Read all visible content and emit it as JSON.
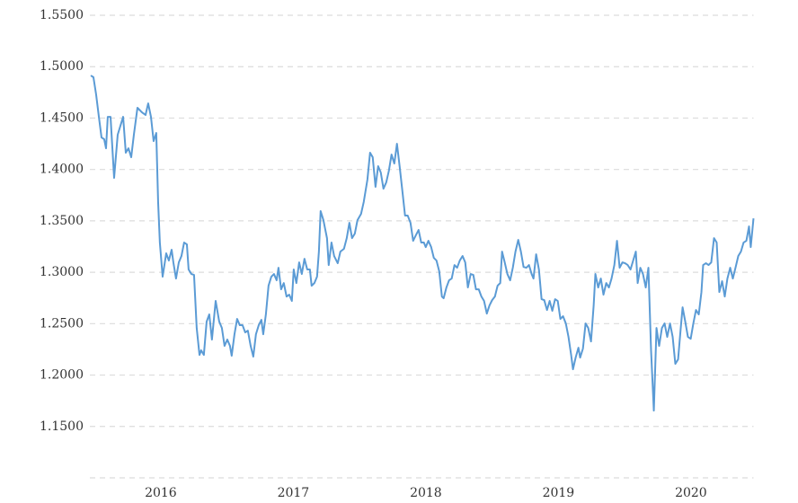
{
  "chart_data": {
    "type": "line",
    "color": "#5b9bd5",
    "grid": true,
    "xlim": [
      2015.465,
      2020.472
    ],
    "xticks": [
      2016,
      2017,
      2018,
      2019,
      2020
    ],
    "ylim": [
      1.1,
      1.55
    ],
    "yticks": [
      {
        "value": 1.15,
        "label": "1.1500"
      },
      {
        "value": 1.2,
        "label": "1.2000"
      },
      {
        "value": 1.25,
        "label": "1.2500"
      },
      {
        "value": 1.3,
        "label": "1.3000"
      },
      {
        "value": 1.35,
        "label": "1.3500"
      },
      {
        "value": 1.4,
        "label": "1.4000"
      },
      {
        "value": 1.45,
        "label": "1.4500"
      },
      {
        "value": 1.5,
        "label": "1.5000"
      },
      {
        "value": 1.55,
        "label": "1.5500"
      }
    ],
    "x": [
      2015.472,
      2015.492,
      2015.512,
      2015.533,
      2015.553,
      2015.573,
      2015.587,
      2015.6,
      2015.621,
      2015.648,
      2015.675,
      2015.716,
      2015.736,
      2015.756,
      2015.777,
      2015.797,
      2015.824,
      2015.858,
      2015.885,
      2015.905,
      2015.926,
      2015.946,
      2015.966,
      2015.98,
      2015.993,
      2016.014,
      2016.041,
      2016.061,
      2016.082,
      2016.095,
      2016.115,
      2016.136,
      2016.156,
      2016.176,
      2016.197,
      2016.21,
      2016.231,
      2016.251,
      2016.271,
      2016.292,
      2016.305,
      2016.325,
      2016.346,
      2016.366,
      2016.386,
      2016.414,
      2016.441,
      2016.461,
      2016.481,
      2016.502,
      2016.522,
      2016.535,
      2016.556,
      2016.576,
      2016.596,
      2016.617,
      2016.637,
      2016.657,
      2016.678,
      2016.698,
      2016.718,
      2016.739,
      2016.759,
      2016.773,
      2016.793,
      2016.813,
      2016.834,
      2016.854,
      2016.874,
      2016.888,
      2016.908,
      2016.928,
      2016.949,
      2016.969,
      2016.989,
      2017.003,
      2017.023,
      2017.044,
      2017.064,
      2017.084,
      2017.105,
      2017.125,
      2017.138,
      2017.159,
      2017.179,
      2017.193,
      2017.206,
      2017.227,
      2017.254,
      2017.267,
      2017.288,
      2017.308,
      2017.335,
      2017.355,
      2017.382,
      2017.403,
      2017.423,
      2017.443,
      2017.464,
      2017.484,
      2017.511,
      2017.531,
      2017.559,
      2017.579,
      2017.599,
      2017.62,
      2017.64,
      2017.66,
      2017.68,
      2017.701,
      2017.721,
      2017.741,
      2017.762,
      2017.782,
      2017.802,
      2017.823,
      2017.843,
      2017.863,
      2017.884,
      2017.904,
      2017.924,
      2017.945,
      2017.965,
      2017.985,
      2017.999,
      2018.019,
      2018.04,
      2018.06,
      2018.08,
      2018.101,
      2018.121,
      2018.134,
      2018.155,
      2018.175,
      2018.195,
      2018.216,
      2018.236,
      2018.256,
      2018.277,
      2018.297,
      2018.317,
      2018.338,
      2018.358,
      2018.378,
      2018.399,
      2018.419,
      2018.439,
      2018.46,
      2018.48,
      2018.5,
      2018.521,
      2018.541,
      2018.561,
      2018.575,
      2018.595,
      2018.615,
      2018.636,
      2018.656,
      2018.676,
      2018.697,
      2018.717,
      2018.737,
      2018.758,
      2018.778,
      2018.798,
      2018.812,
      2018.832,
      2018.853,
      2018.873,
      2018.893,
      2018.914,
      2018.934,
      2018.954,
      2018.975,
      2018.995,
      2019.015,
      2019.035,
      2019.056,
      2019.076,
      2019.096,
      2019.11,
      2019.13,
      2019.151,
      2019.164,
      2019.185,
      2019.205,
      2019.225,
      2019.246,
      2019.266,
      2019.279,
      2019.3,
      2019.32,
      2019.34,
      2019.361,
      2019.381,
      2019.401,
      2019.422,
      2019.442,
      2019.462,
      2019.483,
      2019.503,
      2019.523,
      2019.544,
      2019.564,
      2019.584,
      2019.598,
      2019.618,
      2019.638,
      2019.659,
      2019.679,
      2019.699,
      2019.72,
      2019.74,
      2019.76,
      2019.781,
      2019.801,
      2019.821,
      2019.842,
      2019.862,
      2019.882,
      2019.903,
      2019.923,
      2019.937,
      2019.957,
      2019.977,
      2019.998,
      2020.018,
      2020.038,
      2020.059,
      2020.079,
      2020.092,
      2020.113,
      2020.133,
      2020.153,
      2020.174,
      2020.194,
      2020.214,
      2020.235,
      2020.255,
      2020.275,
      2020.296,
      2020.316,
      2020.336,
      2020.357,
      2020.377,
      2020.397,
      2020.418,
      2020.438,
      2020.451,
      2020.472
    ],
    "values": [
      1.4914,
      1.4897,
      1.4731,
      1.4512,
      1.4311,
      1.4294,
      1.4206,
      1.4512,
      1.4512,
      1.3918,
      1.4338,
      1.4512,
      1.4163,
      1.4206,
      1.4119,
      1.4338,
      1.46,
      1.4556,
      1.453,
      1.4643,
      1.4512,
      1.4276,
      1.4355,
      1.3682,
      1.3289,
      1.2957,
      1.3184,
      1.3114,
      1.3219,
      1.3096,
      1.2939,
      1.3096,
      1.3158,
      1.3289,
      1.3271,
      1.3027,
      1.2983,
      1.2974,
      1.2458,
      1.2196,
      1.224,
      1.2196,
      1.252,
      1.259,
      1.2345,
      1.2721,
      1.252,
      1.2458,
      1.2284,
      1.2345,
      1.2284,
      1.2188,
      1.2397,
      1.2546,
      1.2485,
      1.2485,
      1.2415,
      1.2432,
      1.2284,
      1.2179,
      1.2397,
      1.2485,
      1.2537,
      1.2397,
      1.259,
      1.2869,
      1.2957,
      1.2983,
      1.2922,
      1.3044,
      1.2834,
      1.2895,
      1.2764,
      1.2782,
      1.2721,
      1.3027,
      1.2895,
      1.3096,
      1.2983,
      1.3131,
      1.3027,
      1.3027,
      1.2869,
      1.2895,
      1.2957,
      1.3201,
      1.3595,
      1.3507,
      1.3332,
      1.307,
      1.3289,
      1.3158,
      1.3088,
      1.3201,
      1.3228,
      1.3332,
      1.3481,
      1.3332,
      1.3376,
      1.3507,
      1.3568,
      1.3682,
      1.3901,
      1.4163,
      1.4119,
      1.3831,
      1.4032,
      1.397,
      1.3813,
      1.3874,
      1.3988,
      1.4145,
      1.4058,
      1.425,
      1.4032,
      1.3787,
      1.3551,
      1.3551,
      1.3481,
      1.3306,
      1.3359,
      1.3411,
      1.3289,
      1.3289,
      1.3245,
      1.3306,
      1.3245,
      1.314,
      1.3114,
      1.3009,
      1.2764,
      1.2747,
      1.2852,
      1.2922,
      1.2939,
      1.307,
      1.3044,
      1.3114,
      1.3158,
      1.3096,
      1.2852,
      1.2983,
      1.2974,
      1.2834,
      1.2834,
      1.2764,
      1.2721,
      1.2598,
      1.2677,
      1.2729,
      1.2764,
      1.2869,
      1.2895,
      1.3201,
      1.3096,
      1.2983,
      1.2922,
      1.3044,
      1.3201,
      1.3315,
      1.3201,
      1.3052,
      1.3044,
      1.307,
      1.2983,
      1.2939,
      1.3175,
      1.3027,
      1.2738,
      1.2729,
      1.2633,
      1.2721,
      1.2625,
      1.2738,
      1.2721,
      1.2546,
      1.2572,
      1.2502,
      1.2371,
      1.2196,
      1.2056,
      1.217,
      1.2266,
      1.217,
      1.2257,
      1.2502,
      1.2458,
      1.2327,
      1.2677,
      1.2983,
      1.2852,
      1.2939,
      1.2782,
      1.2895,
      1.2852,
      1.2939,
      1.307,
      1.3306,
      1.3044,
      1.3096,
      1.3088,
      1.307,
      1.3027,
      1.3114,
      1.3201,
      1.2895,
      1.3044,
      1.2983,
      1.2852,
      1.3044,
      1.224,
      1.1654,
      1.2458,
      1.2284,
      1.2458,
      1.2502,
      1.2371,
      1.2502,
      1.2371,
      1.2109,
      1.2153,
      1.2458,
      1.2659,
      1.252,
      1.2371,
      1.2353,
      1.2502,
      1.2633,
      1.259,
      1.2808,
      1.307,
      1.3088,
      1.307,
      1.3096,
      1.3332,
      1.3289,
      1.2808,
      1.2913,
      1.2764,
      1.2939,
      1.3044,
      1.2939,
      1.3044,
      1.3158,
      1.3201,
      1.3289,
      1.3306,
      1.3446,
      1.3245,
      1.3524
    ]
  }
}
